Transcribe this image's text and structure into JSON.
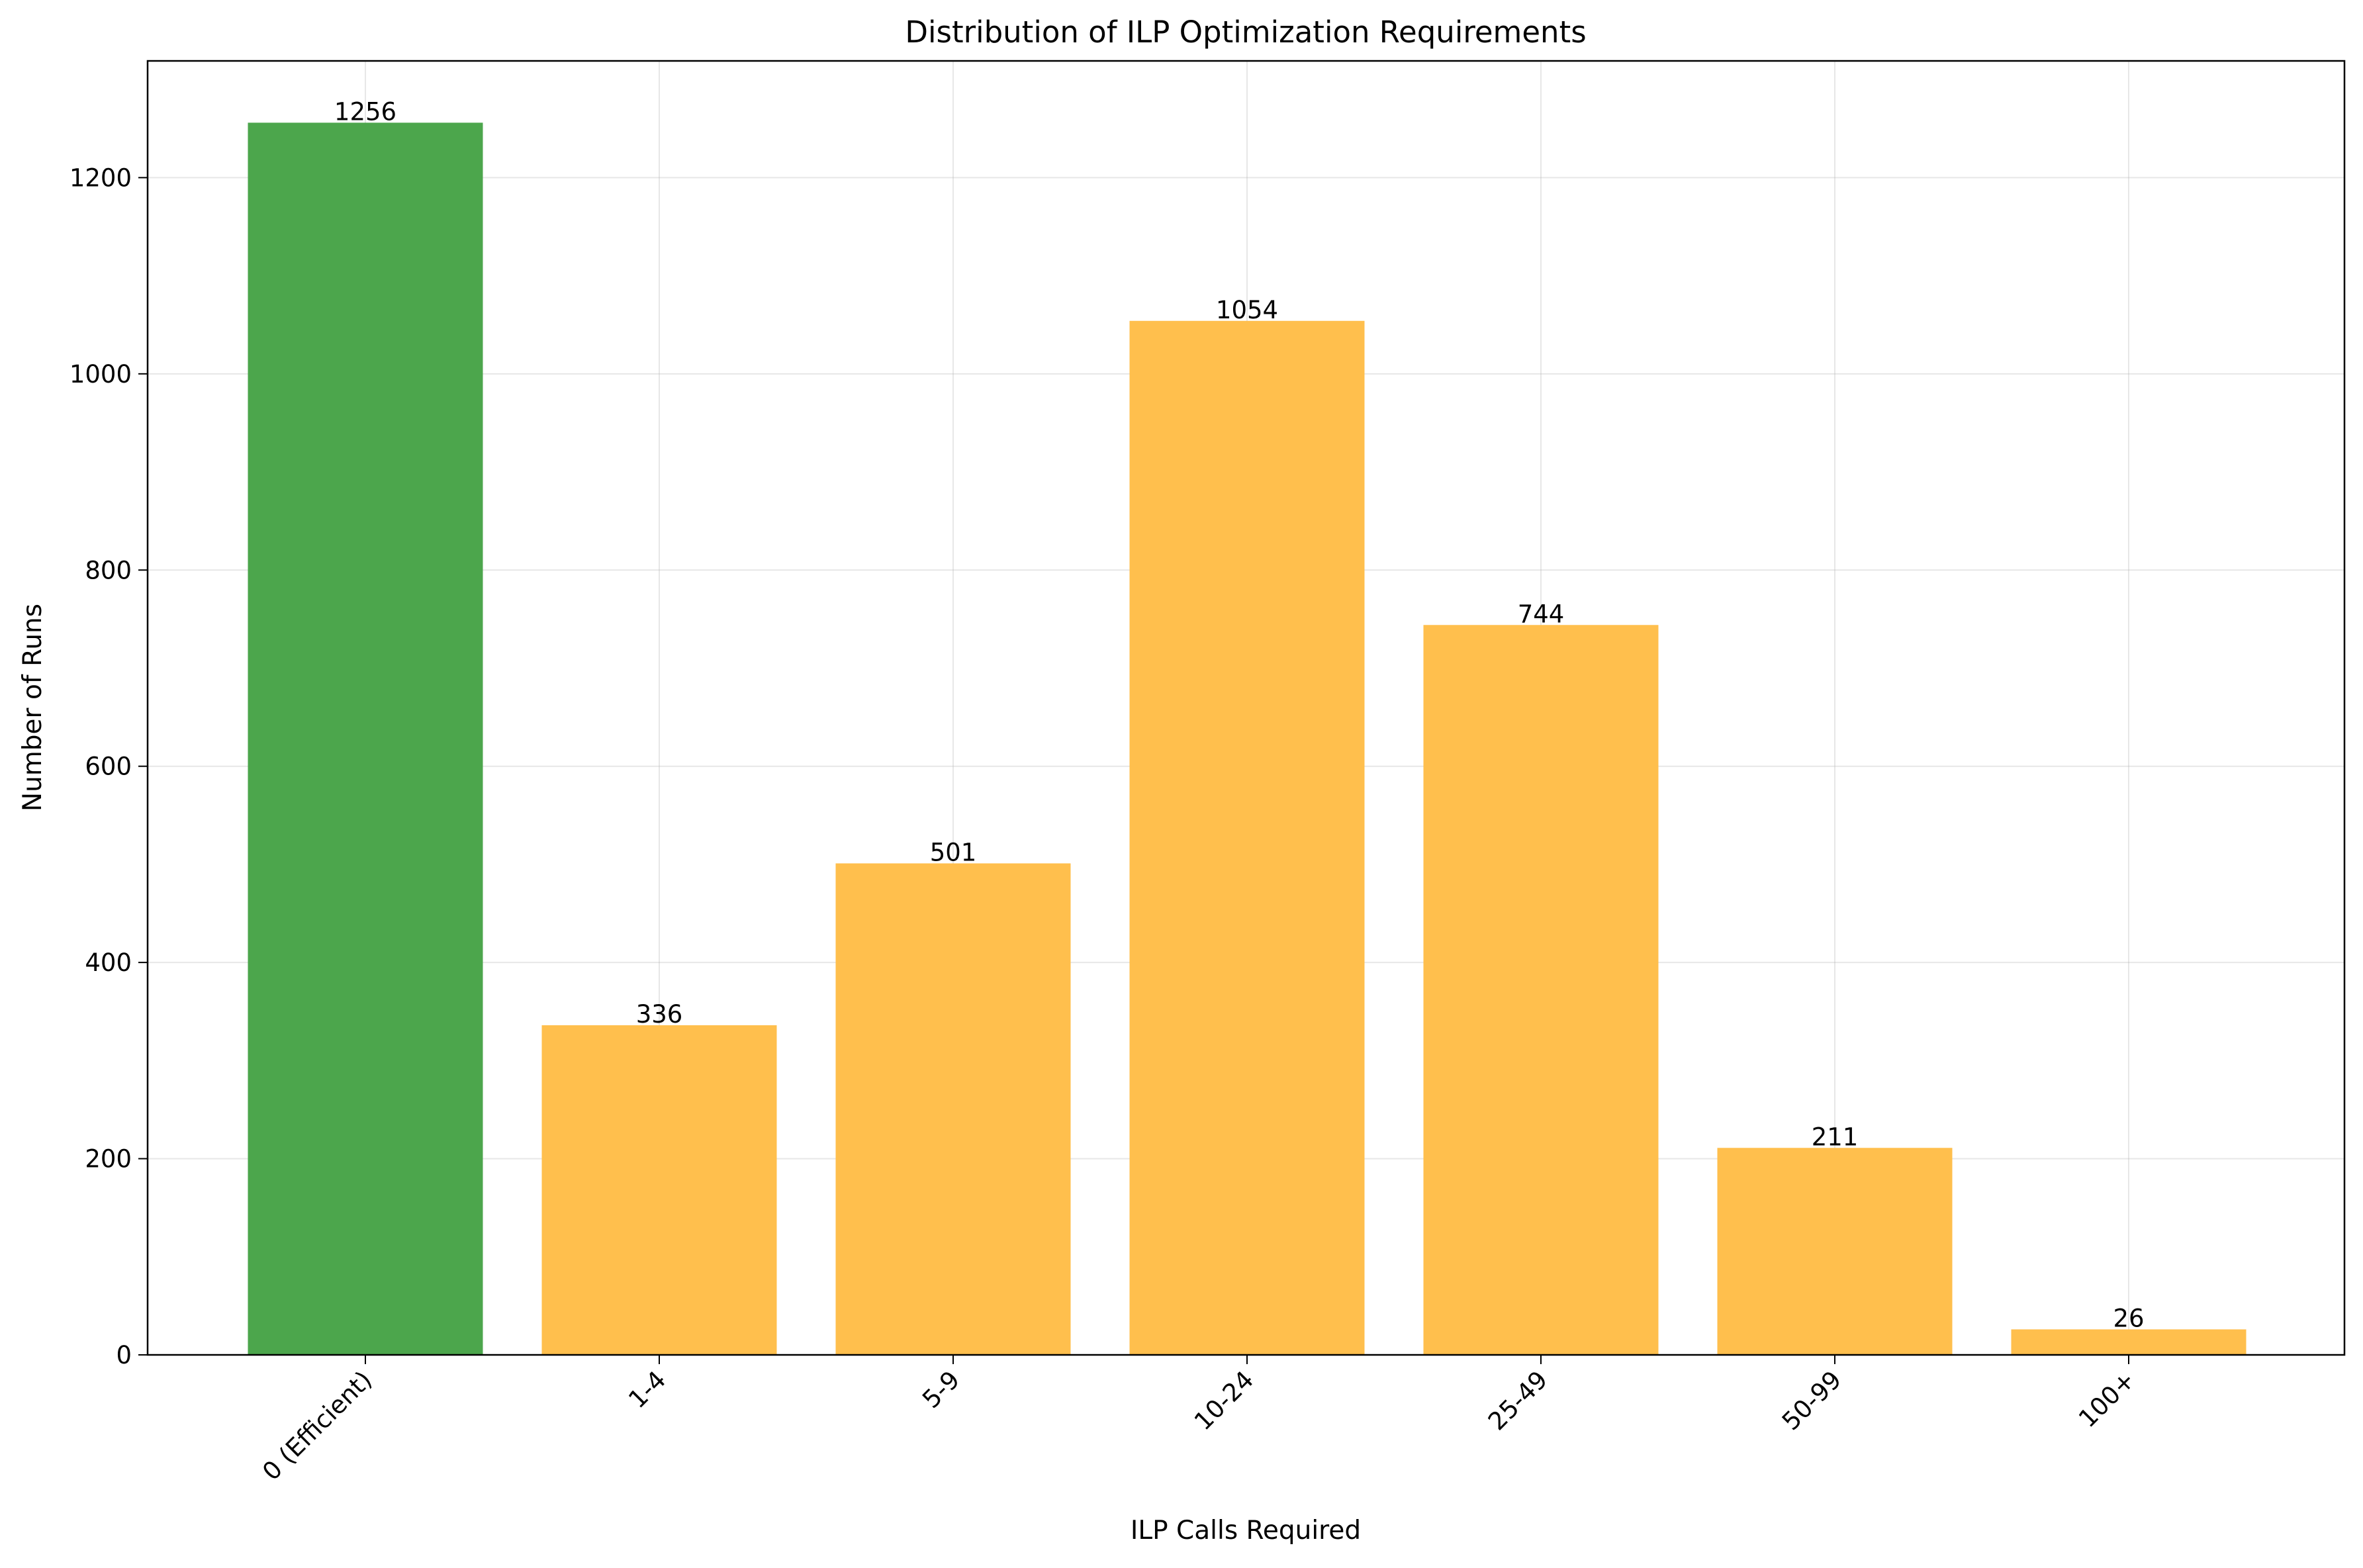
{
  "chart_data": {
    "type": "bar",
    "title": "Distribution of ILP Optimization Requirements",
    "xlabel": "ILP Calls Required",
    "ylabel": "Number of Runs",
    "categories": [
      "0 (Efficient)",
      "1-4",
      "5-9",
      "10-24",
      "25-49",
      "50-99",
      "100+"
    ],
    "values": [
      1256,
      336,
      501,
      1054,
      744,
      211,
      26
    ],
    "bar_colors": [
      "#4ca64c",
      "#ffbf4d",
      "#ffbf4d",
      "#ffbf4d",
      "#ffbf4d",
      "#ffbf4d",
      "#ffbf4d"
    ],
    "ylim": [
      0,
      1319
    ],
    "yticks": [
      0,
      200,
      400,
      600,
      800,
      1000,
      1200
    ],
    "grid": true,
    "legend": false
  }
}
